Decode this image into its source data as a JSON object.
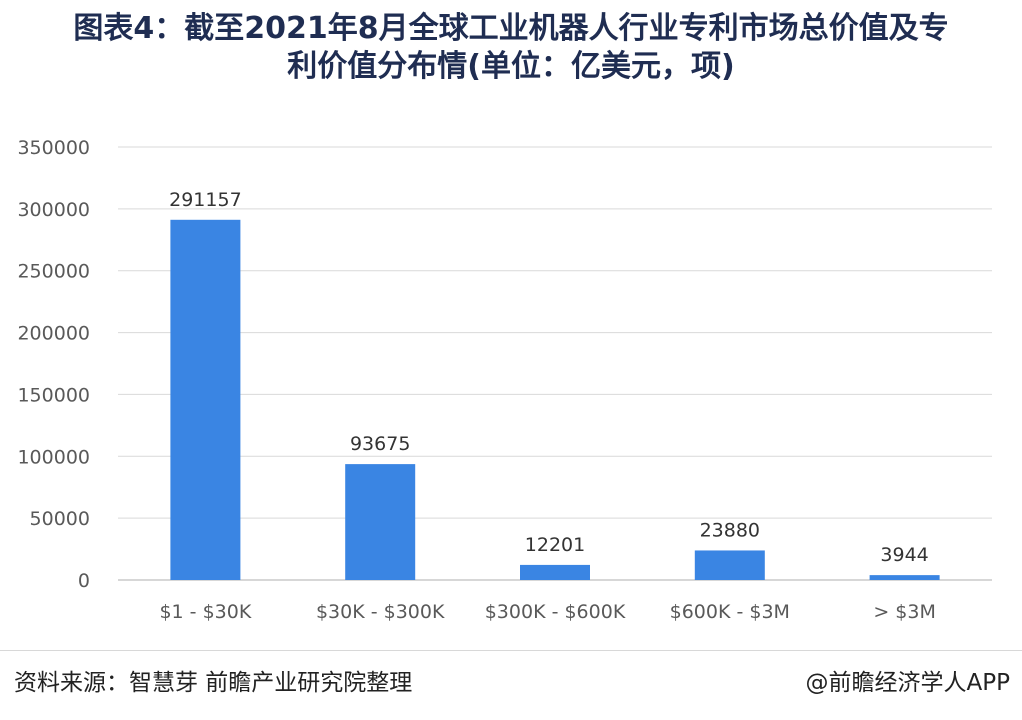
{
  "header": {
    "title_line1": "图表4：截至2021年8月全球工业机器人行业专利市场总价值及专",
    "title_line2": "利价值分布情(单位：亿美元，项)"
  },
  "footer": {
    "source": "资料来源：智慧芽 前瞻产业研究院整理",
    "brand": "@前瞻经济学人APP"
  },
  "chart_data": {
    "type": "bar",
    "categories": [
      "$1 - $30K",
      "$30K - $300K",
      "$300K - $600K",
      "$600K - $3M",
      "> $3M"
    ],
    "values": [
      291157,
      93675,
      12201,
      23880,
      3944
    ],
    "data_labels": [
      "291157",
      "93675",
      "12201",
      "23880",
      "3944"
    ],
    "ylim": [
      0,
      350000
    ],
    "yticks": [
      0,
      50000,
      100000,
      150000,
      200000,
      250000,
      300000,
      350000
    ],
    "ytick_labels": [
      "0",
      "50000",
      "100000",
      "150000",
      "200000",
      "250000",
      "300000",
      "350000"
    ],
    "grid": true,
    "bar_color": "#3a85e3"
  }
}
